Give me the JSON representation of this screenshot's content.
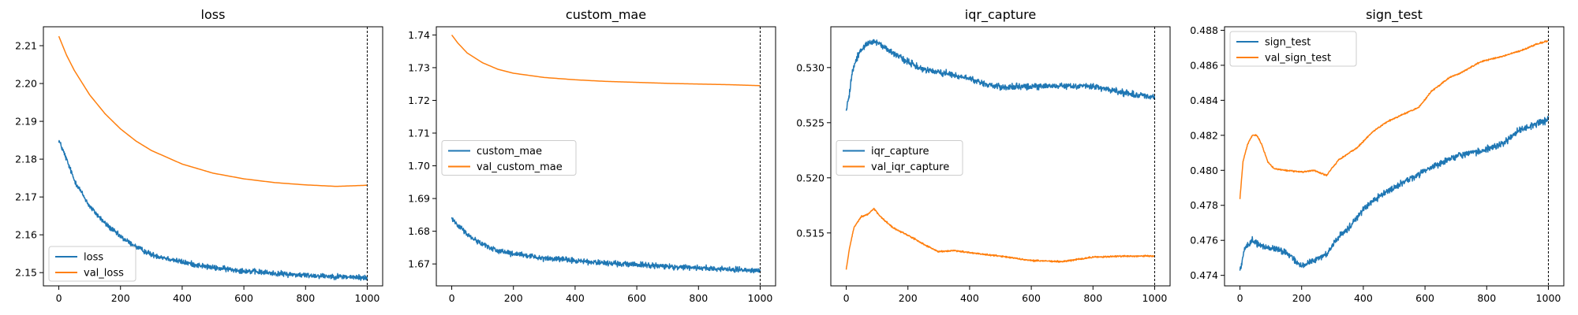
{
  "colors": {
    "series_1": "#1f77b4",
    "series_2": "#ff7f0e",
    "marker_line": "#000000"
  },
  "chart_data": [
    {
      "type": "line",
      "title": "loss",
      "xlim": [
        -50,
        1050
      ],
      "ylim": [
        2.1465,
        2.215
      ],
      "x_ticks": [
        0,
        200,
        400,
        600,
        800,
        1000
      ],
      "y_ticks": [
        2.15,
        2.16,
        2.17,
        2.18,
        2.19,
        2.2,
        2.21
      ],
      "y_decimals": 2,
      "vline_x": 1000,
      "legend_position": "lower-left",
      "series": [
        {
          "name": "loss",
          "noise": 0.0007,
          "points": [
            [
              0,
              2.185
            ],
            [
              20,
              2.181
            ],
            [
              50,
              2.1745
            ],
            [
              100,
              2.1675
            ],
            [
              150,
              2.163
            ],
            [
              200,
              2.1595
            ],
            [
              250,
              2.1568
            ],
            [
              300,
              2.1548
            ],
            [
              350,
              2.1538
            ],
            [
              400,
              2.1528
            ],
            [
              450,
              2.152
            ],
            [
              500,
              2.1513
            ],
            [
              600,
              2.1505
            ],
            [
              700,
              2.1498
            ],
            [
              800,
              2.1493
            ],
            [
              900,
              2.149
            ],
            [
              1000,
              2.1486
            ]
          ]
        },
        {
          "name": "val_loss",
          "noise": 0,
          "points": [
            [
              0,
              2.2125
            ],
            [
              25,
              2.2075
            ],
            [
              50,
              2.2035
            ],
            [
              100,
              2.197
            ],
            [
              150,
              2.192
            ],
            [
              200,
              2.188
            ],
            [
              250,
              2.1848
            ],
            [
              300,
              2.1823
            ],
            [
              400,
              2.1787
            ],
            [
              500,
              2.1763
            ],
            [
              600,
              2.1748
            ],
            [
              700,
              2.1738
            ],
            [
              800,
              2.1732
            ],
            [
              900,
              2.1728
            ],
            [
              1000,
              2.1731
            ]
          ]
        }
      ]
    },
    {
      "type": "line",
      "title": "custom_mae",
      "xlim": [
        -50,
        1050
      ],
      "ylim": [
        1.6633,
        1.7425
      ],
      "x_ticks": [
        0,
        200,
        400,
        600,
        800,
        1000
      ],
      "y_ticks": [
        1.67,
        1.68,
        1.69,
        1.7,
        1.71,
        1.72,
        1.73,
        1.74
      ],
      "y_decimals": 2,
      "vline_x": 1000,
      "legend_position": "center-left",
      "series": [
        {
          "name": "custom_mae",
          "noise": 0.0008,
          "points": [
            [
              0,
              1.684
            ],
            [
              20,
              1.682
            ],
            [
              50,
              1.679
            ],
            [
              100,
              1.676
            ],
            [
              150,
              1.674
            ],
            [
              200,
              1.673
            ],
            [
              300,
              1.6718
            ],
            [
              400,
              1.671
            ],
            [
              500,
              1.6702
            ],
            [
              600,
              1.6698
            ],
            [
              700,
              1.6692
            ],
            [
              800,
              1.6688
            ],
            [
              900,
              1.6684
            ],
            [
              1000,
              1.6678
            ]
          ]
        },
        {
          "name": "val_custom_mae",
          "noise": 0,
          "points": [
            [
              0,
              1.74
            ],
            [
              20,
              1.7375
            ],
            [
              50,
              1.7345
            ],
            [
              100,
              1.7315
            ],
            [
              150,
              1.7295
            ],
            [
              200,
              1.7283
            ],
            [
              300,
              1.727
            ],
            [
              400,
              1.7263
            ],
            [
              500,
              1.7258
            ],
            [
              600,
              1.7255
            ],
            [
              700,
              1.7252
            ],
            [
              800,
              1.725
            ],
            [
              900,
              1.7248
            ],
            [
              1000,
              1.7245
            ]
          ]
        }
      ]
    },
    {
      "type": "line",
      "title": "iqr_capture",
      "xlim": [
        -50,
        1050
      ],
      "ylim": [
        0.5102,
        0.5337
      ],
      "x_ticks": [
        0,
        200,
        400,
        600,
        800,
        1000
      ],
      "y_ticks": [
        0.515,
        0.52,
        0.525,
        0.53
      ],
      "y_decimals": 3,
      "vline_x": 1000,
      "legend_position": "center-left",
      "series": [
        {
          "name": "iqr_capture",
          "noise": 0.00028,
          "points": [
            [
              0,
              0.5262
            ],
            [
              10,
              0.5275
            ],
            [
              20,
              0.5297
            ],
            [
              40,
              0.5313
            ],
            [
              60,
              0.532
            ],
            [
              80,
              0.5322
            ],
            [
              100,
              0.5323
            ],
            [
              150,
              0.5313
            ],
            [
              200,
              0.5305
            ],
            [
              250,
              0.5298
            ],
            [
              300,
              0.5296
            ],
            [
              350,
              0.5293
            ],
            [
              400,
              0.529
            ],
            [
              450,
              0.5285
            ],
            [
              500,
              0.5282
            ],
            [
              600,
              0.5283
            ],
            [
              700,
              0.5283
            ],
            [
              800,
              0.5283
            ],
            [
              850,
              0.528
            ],
            [
              900,
              0.5277
            ],
            [
              950,
              0.5275
            ],
            [
              1000,
              0.5273
            ]
          ]
        },
        {
          "name": "val_iqr_capture",
          "noise": 7e-05,
          "points": [
            [
              0,
              0.5117
            ],
            [
              10,
              0.5135
            ],
            [
              25,
              0.5155
            ],
            [
              50,
              0.5165
            ],
            [
              70,
              0.5167
            ],
            [
              90,
              0.5172
            ],
            [
              110,
              0.5165
            ],
            [
              150,
              0.5155
            ],
            [
              200,
              0.5148
            ],
            [
              250,
              0.514
            ],
            [
              300,
              0.5133
            ],
            [
              350,
              0.5134
            ],
            [
              400,
              0.5132
            ],
            [
              500,
              0.5129
            ],
            [
              600,
              0.5125
            ],
            [
              700,
              0.5124
            ],
            [
              800,
              0.5128
            ],
            [
              900,
              0.5129
            ],
            [
              1000,
              0.5129
            ]
          ]
        }
      ]
    },
    {
      "type": "line",
      "title": "sign_test",
      "xlim": [
        -50,
        1050
      ],
      "ylim": [
        0.4734,
        0.4882
      ],
      "x_ticks": [
        0,
        200,
        400,
        600,
        800,
        1000
      ],
      "y_ticks": [
        0.474,
        0.476,
        0.478,
        0.48,
        0.482,
        0.484,
        0.486,
        0.488
      ],
      "y_decimals": 3,
      "vline_x": 1000,
      "legend_position": "top-left",
      "series": [
        {
          "name": "sign_test",
          "noise": 0.00018,
          "points": [
            [
              0,
              0.4743
            ],
            [
              15,
              0.4755
            ],
            [
              40,
              0.476
            ],
            [
              80,
              0.4756
            ],
            [
              120,
              0.4755
            ],
            [
              160,
              0.4752
            ],
            [
              200,
              0.4745
            ],
            [
              230,
              0.4748
            ],
            [
              280,
              0.4752
            ],
            [
              320,
              0.4762
            ],
            [
              360,
              0.4768
            ],
            [
              400,
              0.4778
            ],
            [
              450,
              0.4785
            ],
            [
              500,
              0.479
            ],
            [
              550,
              0.4795
            ],
            [
              600,
              0.48
            ],
            [
              650,
              0.4804
            ],
            [
              700,
              0.4808
            ],
            [
              750,
              0.481
            ],
            [
              800,
              0.4812
            ],
            [
              850,
              0.4815
            ],
            [
              900,
              0.4822
            ],
            [
              950,
              0.4826
            ],
            [
              1000,
              0.4829
            ]
          ]
        },
        {
          "name": "val_sign_test",
          "noise": 4e-05,
          "points": [
            [
              0,
              0.4784
            ],
            [
              10,
              0.4805
            ],
            [
              25,
              0.4815
            ],
            [
              40,
              0.482
            ],
            [
              55,
              0.482
            ],
            [
              70,
              0.4815
            ],
            [
              90,
              0.4805
            ],
            [
              110,
              0.4801
            ],
            [
              150,
              0.48
            ],
            [
              200,
              0.4799
            ],
            [
              240,
              0.48
            ],
            [
              280,
              0.4797
            ],
            [
              320,
              0.4806
            ],
            [
              380,
              0.4813
            ],
            [
              430,
              0.4822
            ],
            [
              480,
              0.4828
            ],
            [
              530,
              0.4832
            ],
            [
              580,
              0.4836
            ],
            [
              620,
              0.4845
            ],
            [
              680,
              0.4853
            ],
            [
              720,
              0.4856
            ],
            [
              780,
              0.4862
            ],
            [
              850,
              0.4865
            ],
            [
              920,
              0.4869
            ],
            [
              960,
              0.4872
            ],
            [
              1000,
              0.4874
            ]
          ]
        }
      ]
    }
  ]
}
